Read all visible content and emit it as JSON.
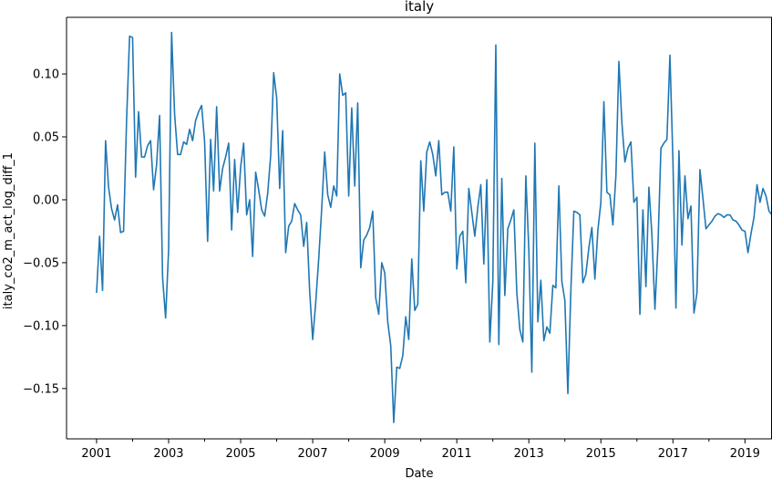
{
  "chart_data": {
    "type": "line",
    "title": "italy",
    "xlabel": "Date",
    "ylabel": "italy_co2_m_act_log_diff_1",
    "x_ticks": [
      "2001",
      "2003",
      "2005",
      "2007",
      "2009",
      "2011",
      "2013",
      "2015",
      "2017",
      "2019"
    ],
    "y_ticks": [
      "0.10",
      "0.05",
      "0.00",
      "−0.05",
      "−0.10",
      "−0.15"
    ],
    "xlim": [
      "2000-03",
      "2019-10"
    ],
    "ylim": [
      -0.19,
      0.145
    ],
    "grid": false,
    "color": "#1f77b4",
    "series": [
      {
        "x": [
          "2001-01",
          "2001-02",
          "2001-03",
          "2001-04",
          "2001-05",
          "2001-06",
          "2001-07",
          "2001-08",
          "2001-09",
          "2001-10",
          "2001-11",
          "2001-12",
          "2002-01",
          "2002-02",
          "2002-03",
          "2002-04",
          "2002-05",
          "2002-06",
          "2002-07",
          "2002-08",
          "2002-09",
          "2002-10",
          "2002-11",
          "2002-12",
          "2003-01",
          "2003-02",
          "2003-03",
          "2003-04",
          "2003-05",
          "2003-06",
          "2003-07",
          "2003-08",
          "2003-09",
          "2003-10",
          "2003-11",
          "2003-12",
          "2004-01",
          "2004-02",
          "2004-03",
          "2004-04",
          "2004-05",
          "2004-06",
          "2004-07",
          "2004-08",
          "2004-09",
          "2004-10",
          "2004-11",
          "2004-12",
          "2005-01",
          "2005-02",
          "2005-03",
          "2005-04",
          "2005-05",
          "2005-06",
          "2005-07",
          "2005-08",
          "2005-09",
          "2005-10",
          "2005-11",
          "2005-12",
          "2006-01",
          "2006-02",
          "2006-03",
          "2006-04",
          "2006-05",
          "2006-06",
          "2006-07",
          "2006-08",
          "2006-09",
          "2006-10",
          "2006-11",
          "2006-12",
          "2007-01",
          "2007-02",
          "2007-03",
          "2007-04",
          "2007-05",
          "2007-06",
          "2007-07",
          "2007-08",
          "2007-09",
          "2007-10",
          "2007-11",
          "2007-12",
          "2008-01",
          "2008-02",
          "2008-03",
          "2008-04",
          "2008-05",
          "2008-06",
          "2008-07",
          "2008-08",
          "2008-09",
          "2008-10",
          "2008-11",
          "2008-12",
          "2009-01",
          "2009-02",
          "2009-03",
          "2009-04",
          "2009-05",
          "2009-06",
          "2009-07",
          "2009-08",
          "2009-09",
          "2009-10",
          "2009-11",
          "2009-12",
          "2010-01",
          "2010-02",
          "2010-03",
          "2010-04",
          "2010-05",
          "2010-06",
          "2010-07",
          "2010-08",
          "2010-09",
          "2010-10",
          "2010-11",
          "2010-12",
          "2011-01",
          "2011-02",
          "2011-03",
          "2011-04",
          "2011-05",
          "2011-06",
          "2011-07",
          "2011-08",
          "2011-09",
          "2011-10",
          "2011-11",
          "2011-12",
          "2012-01",
          "2012-02",
          "2012-03",
          "2012-04",
          "2012-05",
          "2012-06",
          "2012-07",
          "2012-08",
          "2012-09",
          "2012-10",
          "2012-11",
          "2012-12",
          "2013-01",
          "2013-02",
          "2013-03",
          "2013-04",
          "2013-05",
          "2013-06",
          "2013-07",
          "2013-08",
          "2013-09",
          "2013-10",
          "2013-11",
          "2013-12",
          "2014-01",
          "2014-02",
          "2014-03",
          "2014-04",
          "2014-05",
          "2014-06",
          "2014-07",
          "2014-08",
          "2014-09",
          "2014-10",
          "2014-11",
          "2014-12",
          "2015-01",
          "2015-02",
          "2015-03",
          "2015-04",
          "2015-05",
          "2015-06",
          "2015-07",
          "2015-08",
          "2015-09",
          "2015-10",
          "2015-11",
          "2015-12",
          "2016-01",
          "2016-02",
          "2016-03",
          "2016-04",
          "2016-05",
          "2016-06",
          "2016-07",
          "2016-08",
          "2016-09",
          "2016-10",
          "2016-11",
          "2016-12",
          "2017-01",
          "2017-02",
          "2017-03",
          "2017-04",
          "2017-05",
          "2017-06",
          "2017-07",
          "2017-08",
          "2017-09",
          "2017-10",
          "2017-11",
          "2017-12",
          "2018-01",
          "2018-02",
          "2018-03",
          "2018-04",
          "2018-05",
          "2018-06",
          "2018-07",
          "2018-08",
          "2018-09",
          "2018-10",
          "2018-11",
          "2018-12",
          "2019-01",
          "2019-02",
          "2019-03",
          "2019-04",
          "2019-05",
          "2019-06",
          "2019-07",
          "2019-08",
          "2019-09",
          "2019-10"
        ],
        "values": [
          -0.074,
          -0.029,
          -0.072,
          0.047,
          0.01,
          -0.007,
          -0.016,
          -0.004,
          -0.026,
          -0.025,
          0.063,
          0.13,
          0.129,
          0.018,
          0.07,
          0.034,
          0.034,
          0.043,
          0.047,
          0.008,
          0.028,
          0.067,
          -0.062,
          -0.094,
          -0.04,
          0.133,
          0.068,
          0.036,
          0.036,
          0.046,
          0.044,
          0.056,
          0.047,
          0.063,
          0.07,
          0.075,
          0.046,
          -0.033,
          0.048,
          0.007,
          0.074,
          0.007,
          0.025,
          0.034,
          0.045,
          -0.024,
          0.032,
          -0.01,
          0.026,
          0.045,
          -0.012,
          0.0,
          -0.045,
          0.022,
          0.008,
          -0.008,
          -0.013,
          0.005,
          0.035,
          0.101,
          0.081,
          0.009,
          0.055,
          -0.042,
          -0.021,
          -0.017,
          -0.003,
          -0.008,
          -0.012,
          -0.037,
          -0.018,
          -0.073,
          -0.111,
          -0.082,
          -0.047,
          -0.007,
          0.038,
          0.004,
          -0.006,
          0.011,
          0.003,
          0.1,
          0.083,
          0.085,
          0.003,
          0.073,
          0.011,
          0.077,
          -0.054,
          -0.032,
          -0.028,
          -0.022,
          -0.009,
          -0.078,
          -0.091,
          -0.05,
          -0.058,
          -0.097,
          -0.116,
          -0.177,
          -0.133,
          -0.134,
          -0.124,
          -0.093,
          -0.111,
          -0.047,
          -0.088,
          -0.083,
          0.031,
          -0.009,
          0.038,
          0.046,
          0.036,
          0.019,
          0.047,
          0.004,
          0.006,
          0.006,
          -0.009,
          0.042,
          -0.055,
          -0.029,
          -0.025,
          -0.066,
          0.009,
          -0.01,
          -0.029,
          -0.006,
          0.012,
          -0.051,
          0.016,
          -0.113,
          -0.065,
          0.123,
          -0.115,
          0.017,
          -0.076,
          -0.023,
          -0.016,
          -0.008,
          -0.074,
          -0.103,
          -0.113,
          0.019,
          -0.04,
          -0.137,
          0.045,
          -0.097,
          -0.064,
          -0.112,
          -0.101,
          -0.106,
          -0.068,
          -0.07,
          0.011,
          -0.065,
          -0.08,
          -0.154,
          -0.072,
          -0.009,
          -0.01,
          -0.012,
          -0.066,
          -0.059,
          -0.038,
          -0.022,
          -0.063,
          -0.024,
          -0.002,
          0.078,
          0.006,
          0.004,
          -0.02,
          0.019,
          0.11,
          0.061,
          0.03,
          0.041,
          0.046,
          -0.002,
          0.002,
          -0.091,
          -0.008,
          -0.069,
          0.01,
          -0.028,
          -0.087,
          -0.037,
          0.041,
          0.045,
          0.048,
          0.115,
          0.031,
          -0.086,
          0.039,
          -0.036,
          0.019,
          -0.015,
          -0.005,
          -0.09,
          -0.074,
          0.024,
          0.001,
          -0.023,
          -0.02,
          -0.017,
          -0.013,
          -0.011,
          -0.012,
          -0.014,
          -0.012,
          -0.012,
          -0.016,
          -0.017,
          -0.02,
          -0.024,
          -0.025,
          -0.042,
          -0.027,
          -0.014,
          0.012,
          -0.002,
          0.009,
          0.003,
          -0.009,
          -0.012
        ]
      }
    ]
  }
}
